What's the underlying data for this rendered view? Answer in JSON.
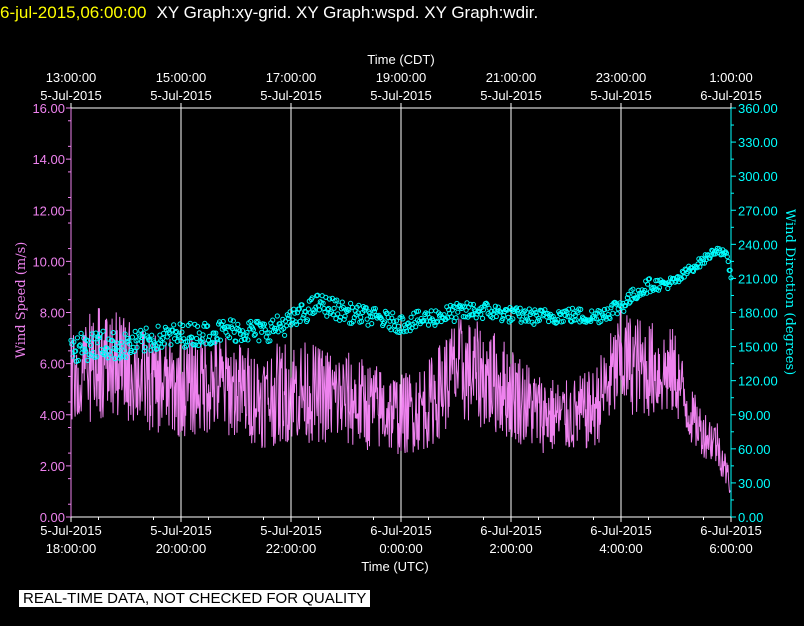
{
  "header": {
    "timestamp": "6-jul-2015,06:00:00",
    "titles": "XY Graph:xy-grid.  XY Graph:wspd.  XY Graph:wdir."
  },
  "footer": {
    "qc_notice": "REAL-TIME DATA, NOT CHECKED FOR QUALITY"
  },
  "colors": {
    "wind_speed": "#ee82ee",
    "wind_direction": "#00ffff",
    "grid": "#ffffff",
    "axis_text": "#ffffff",
    "background": "#000000"
  },
  "chart_data": {
    "type": "line",
    "top_axis": {
      "label": "Time (CDT)",
      "ticks": [
        {
          "time": "13:00:00",
          "date": "5-Jul-2015"
        },
        {
          "time": "15:00:00",
          "date": "5-Jul-2015"
        },
        {
          "time": "17:00:00",
          "date": "5-Jul-2015"
        },
        {
          "time": "19:00:00",
          "date": "5-Jul-2015"
        },
        {
          "time": "21:00:00",
          "date": "5-Jul-2015"
        },
        {
          "time": "23:00:00",
          "date": "5-Jul-2015"
        },
        {
          "time": "1:00:00",
          "date": "6-Jul-2015"
        }
      ]
    },
    "bottom_axis": {
      "label": "Time (UTC)",
      "ticks": [
        {
          "date": "5-Jul-2015",
          "time": "18:00:00"
        },
        {
          "date": "5-Jul-2015",
          "time": "20:00:00"
        },
        {
          "date": "5-Jul-2015",
          "time": "22:00:00"
        },
        {
          "date": "6-Jul-2015",
          "time": "0:00:00"
        },
        {
          "date": "6-Jul-2015",
          "time": "2:00:00"
        },
        {
          "date": "6-Jul-2015",
          "time": "4:00:00"
        },
        {
          "date": "6-Jul-2015",
          "time": "6:00:00"
        }
      ],
      "range": [
        "5-Jul-2015 18:00:00",
        "6-Jul-2015 06:00:00"
      ]
    },
    "left_axis": {
      "label": "Wind Speed (m/s)",
      "range": [
        0,
        16
      ],
      "ticks": [
        "0.00",
        "2.00",
        "4.00",
        "6.00",
        "8.00",
        "10.00",
        "12.00",
        "14.00",
        "16.00"
      ]
    },
    "right_axis": {
      "label": "Wind Direction (degrees)",
      "range": [
        0,
        360
      ],
      "ticks": [
        "0.00",
        "30.00",
        "60.00",
        "90.00",
        "120.00",
        "150.00",
        "180.00",
        "210.00",
        "240.00",
        "270.00",
        "300.00",
        "330.00",
        "360.00"
      ]
    },
    "grid": "vertical",
    "series": [
      {
        "name": "wspd",
        "style": "line",
        "axis": "left",
        "x_utc": [
          "18:00",
          "18:30",
          "19:00",
          "19:30",
          "20:00",
          "20:30",
          "21:00",
          "21:30",
          "22:00",
          "22:30",
          "23:00",
          "23:30",
          "00:00",
          "00:30",
          "01:00",
          "01:30",
          "02:00",
          "02:30",
          "03:00",
          "03:30",
          "04:00",
          "04:30",
          "05:00",
          "05:15",
          "05:30",
          "05:45",
          "06:00"
        ],
        "values": [
          5.5,
          6.0,
          5.8,
          5.2,
          5.0,
          5.3,
          5.0,
          4.6,
          5.0,
          4.8,
          4.6,
          4.3,
          4.0,
          4.4,
          5.8,
          5.5,
          4.9,
          4.1,
          3.9,
          4.2,
          6.1,
          5.8,
          5.6,
          4.0,
          3.3,
          2.9,
          1.2
        ],
        "spread": [
          1.2,
          1.4,
          1.3,
          1.2,
          1.2,
          1.3,
          1.2,
          1.2,
          1.3,
          1.2,
          1.2,
          1.1,
          1.0,
          1.1,
          1.3,
          1.3,
          1.2,
          1.0,
          0.9,
          1.0,
          1.3,
          1.2,
          1.1,
          0.7,
          0.6,
          0.6,
          0.3
        ]
      },
      {
        "name": "wdir",
        "style": "markers",
        "axis": "right",
        "x_utc": [
          "18:00",
          "18:30",
          "19:00",
          "19:30",
          "20:00",
          "20:30",
          "21:00",
          "21:30",
          "22:00",
          "22:30",
          "23:00",
          "23:30",
          "00:00",
          "00:30",
          "01:00",
          "01:30",
          "02:00",
          "02:30",
          "03:00",
          "03:30",
          "04:00",
          "04:15",
          "04:30",
          "04:45",
          "05:00",
          "05:15",
          "05:30",
          "05:45",
          "05:55",
          "06:00"
        ],
        "values": [
          148,
          152,
          150,
          157,
          160,
          162,
          165,
          163,
          172,
          188,
          180,
          176,
          170,
          175,
          180,
          182,
          178,
          176,
          178,
          176,
          186,
          196,
          204,
          205,
          207,
          218,
          226,
          236,
          230,
          212
        ],
        "spread": [
          12,
          13,
          12,
          11,
          11,
          10,
          11,
          10,
          10,
          9,
          9,
          8,
          8,
          8,
          8,
          8,
          7,
          7,
          7,
          7,
          8,
          6,
          6,
          5,
          5,
          4,
          4,
          3,
          3,
          3
        ]
      }
    ]
  }
}
